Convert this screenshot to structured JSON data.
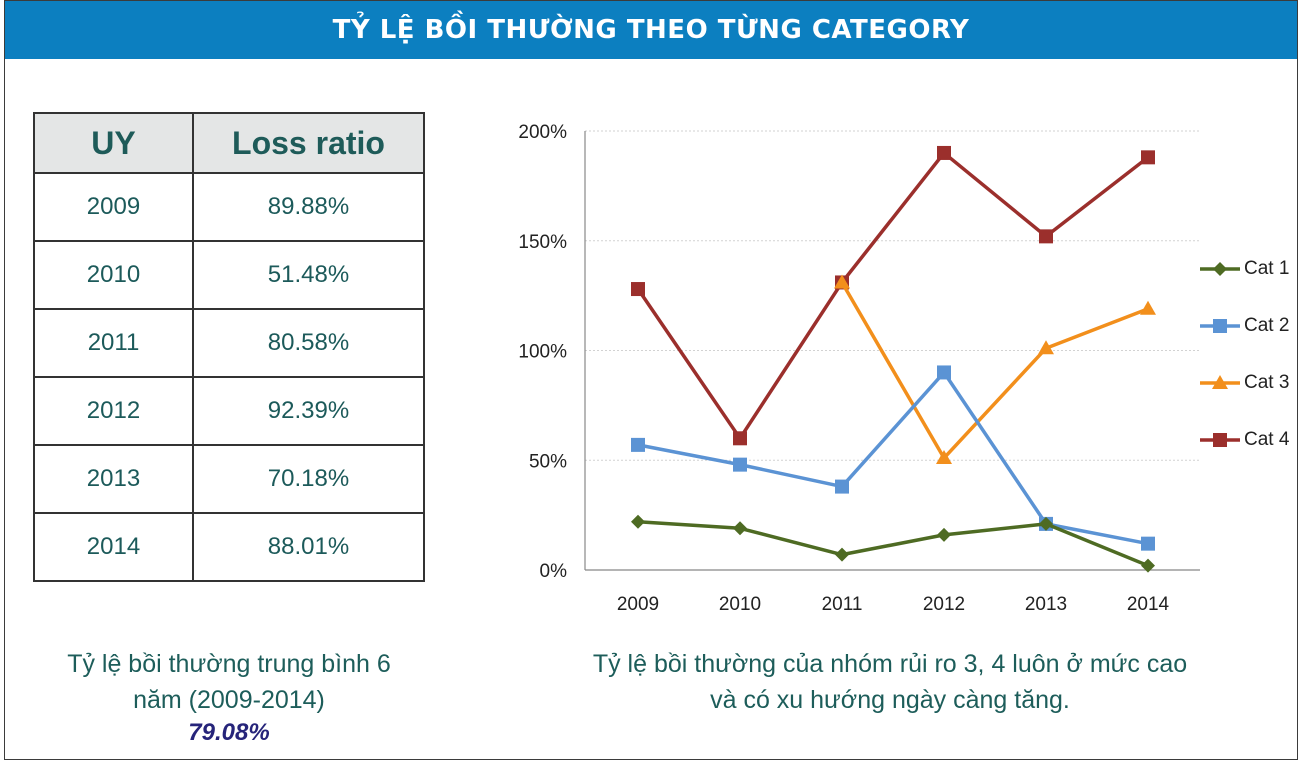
{
  "banner": {
    "title": "TỶ LỆ BỒI THƯỜNG THEO TỪNG CATEGORY"
  },
  "table": {
    "headers": [
      "UY",
      "Loss ratio"
    ],
    "rows": [
      [
        "2009",
        "89.88%"
      ],
      [
        "2010",
        "51.48%"
      ],
      [
        "2011",
        "80.58%"
      ],
      [
        "2012",
        "92.39%"
      ],
      [
        "2013",
        "70.18%"
      ],
      [
        "2014",
        "88.01%"
      ]
    ]
  },
  "average": {
    "line1": "Tỷ lệ bồi thường trung bình 6",
    "line2": "năm (2009-2014)",
    "value": "79.08%"
  },
  "note": {
    "line1": "Tỷ lệ bồi thường của nhóm rủi ro 3, 4 luôn ở mức cao",
    "line2": "và có xu hướng ngày càng tăng."
  },
  "chart_data": {
    "type": "line",
    "categories": [
      "2009",
      "2010",
      "2011",
      "2012",
      "2013",
      "2014"
    ],
    "ylim": [
      0,
      200
    ],
    "yticks": [
      0,
      50,
      100,
      150,
      200
    ],
    "ytick_labels": [
      "0%",
      "50%",
      "100%",
      "150%",
      "200%"
    ],
    "grid": true,
    "legend_position": "right",
    "series": [
      {
        "name": "Cat 1",
        "color": "#4e6b23",
        "marker": "diamond",
        "values": [
          22,
          19,
          7,
          16,
          21,
          2
        ]
      },
      {
        "name": "Cat 2",
        "color": "#5b93d4",
        "marker": "square",
        "values": [
          57,
          48,
          38,
          90,
          21,
          12
        ]
      },
      {
        "name": "Cat 3",
        "color": "#f28f1c",
        "marker": "triangle",
        "values": [
          null,
          null,
          131,
          51,
          101,
          119
        ]
      },
      {
        "name": "Cat 4",
        "color": "#9b2f2c",
        "marker": "square",
        "values": [
          128,
          60,
          131,
          190,
          152,
          188
        ]
      }
    ]
  }
}
